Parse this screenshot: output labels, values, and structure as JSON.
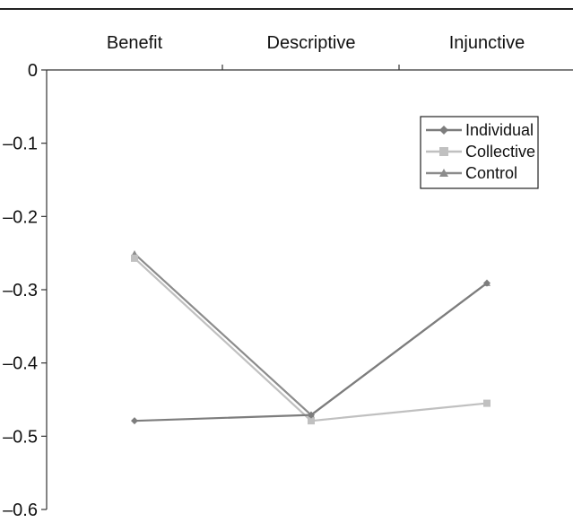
{
  "chart_data": {
    "type": "line",
    "title": "",
    "xlabel": "",
    "ylabel": "",
    "categories": [
      "Benefit",
      "Descriptive",
      "Injunctive"
    ],
    "ylim": [
      -0.6,
      0
    ],
    "yticks": [
      0,
      -0.1,
      -0.2,
      -0.3,
      -0.4,
      -0.5,
      -0.6
    ],
    "ytick_labels": [
      "0",
      "–0.1",
      "–0.2",
      "–0.3",
      "–0.4",
      "–0.5",
      "–0.6"
    ],
    "grid": false,
    "legend_position": "top-right",
    "series": [
      {
        "name": "Individual",
        "values": [
          -0.479,
          -0.471,
          -0.291
        ],
        "color": "#7d7d7d",
        "marker": "diamond"
      },
      {
        "name": "Collective",
        "values": [
          -0.257,
          -0.479,
          -0.455
        ],
        "color": "#c0c0c0",
        "marker": "square"
      },
      {
        "name": "Control",
        "values": [
          -0.251,
          -0.471,
          -0.291
        ],
        "color": "#8c8c8c",
        "marker": "triangle"
      }
    ]
  }
}
